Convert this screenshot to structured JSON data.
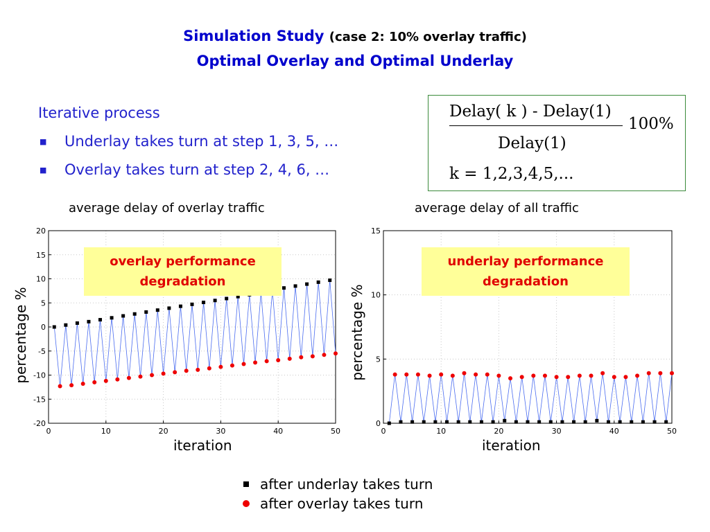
{
  "header": {
    "title_main": "Simulation Study",
    "title_sub": "(case 2: 10% overlay traffic)",
    "title_line2": "Optimal Overlay and Optimal Underlay"
  },
  "bullets": {
    "heading": "Iterative process",
    "items": [
      "Underlay takes turn at step 1, 3, 5, …",
      "Overlay takes turn at step 2, 4, 6, …"
    ],
    "marker": "■"
  },
  "formula": {
    "numerator": "Delay( k ) - Delay(1)",
    "denominator": "Delay(1)",
    "factor": "100%",
    "k_line": "k = 1,2,3,4,5,..."
  },
  "legend": {
    "underlay_label": "after underlay takes turn",
    "overlay_label": "after overlay takes turn",
    "underlay_color": "#000000",
    "overlay_color": "#ee0000",
    "line_color": "#4a6cf0"
  },
  "chart_data": [
    {
      "type": "line",
      "title": "average delay of overlay traffic",
      "xlabel": "iteration",
      "ylabel": "percentage %",
      "xlim": [
        0,
        50
      ],
      "ylim": [
        -20,
        20
      ],
      "xticks": [
        "0",
        "10",
        "20",
        "30",
        "40",
        "50"
      ],
      "yticks": [
        "20",
        "15",
        "10",
        "5",
        "0",
        "-5",
        "-10",
        "-15",
        "-20"
      ],
      "grid": true,
      "annotation": [
        "overlay performance",
        "degradation"
      ],
      "series": [
        {
          "name": "after underlay takes turn",
          "x": [
            1,
            3,
            5,
            7,
            9,
            11,
            13,
            15,
            17,
            19,
            21,
            23,
            25,
            27,
            29,
            31,
            33,
            35,
            37,
            39,
            41,
            43,
            45,
            47,
            49
          ],
          "values": [
            0.0,
            0.4,
            0.8,
            1.1,
            1.5,
            1.9,
            2.3,
            2.7,
            3.1,
            3.5,
            3.9,
            4.3,
            4.7,
            5.1,
            5.5,
            5.9,
            6.3,
            6.7,
            7.1,
            7.5,
            8.1,
            8.5,
            8.9,
            9.3,
            9.7
          ]
        },
        {
          "name": "after overlay takes turn",
          "x": [
            2,
            4,
            6,
            8,
            10,
            12,
            14,
            16,
            18,
            20,
            22,
            24,
            26,
            28,
            30,
            32,
            34,
            36,
            38,
            40,
            42,
            44,
            46,
            48,
            50
          ],
          "values": [
            -12.3,
            -12.1,
            -11.8,
            -11.5,
            -11.2,
            -10.9,
            -10.6,
            -10.3,
            -10.0,
            -9.7,
            -9.4,
            -9.1,
            -8.9,
            -8.6,
            -8.3,
            -8.0,
            -7.7,
            -7.4,
            -7.1,
            -6.9,
            -6.6,
            -6.3,
            -6.1,
            -5.8,
            -5.5
          ]
        }
      ]
    },
    {
      "type": "line",
      "title": "average delay of all traffic",
      "xlabel": "iteration",
      "ylabel": "percentage %",
      "xlim": [
        0,
        50
      ],
      "ylim": [
        0,
        15
      ],
      "xticks": [
        "0",
        "10",
        "20",
        "30",
        "40",
        "50"
      ],
      "yticks": [
        "15",
        "10",
        "5",
        "0"
      ],
      "grid": true,
      "annotation": [
        "underlay performance",
        "degradation"
      ],
      "series": [
        {
          "name": "after underlay takes turn",
          "x": [
            1,
            3,
            5,
            7,
            9,
            11,
            13,
            15,
            17,
            19,
            21,
            23,
            25,
            27,
            29,
            31,
            33,
            35,
            37,
            39,
            41,
            43,
            45,
            47,
            49
          ],
          "values": [
            0.0,
            0.1,
            0.1,
            0.1,
            0.1,
            0.1,
            0.1,
            0.1,
            0.1,
            0.1,
            0.2,
            0.1,
            0.1,
            0.1,
            0.1,
            0.1,
            0.1,
            0.1,
            0.2,
            0.1,
            0.1,
            0.1,
            0.1,
            0.1,
            0.1
          ]
        },
        {
          "name": "after overlay takes turn",
          "x": [
            2,
            4,
            6,
            8,
            10,
            12,
            14,
            16,
            18,
            20,
            22,
            24,
            26,
            28,
            30,
            32,
            34,
            36,
            38,
            40,
            42,
            44,
            46,
            48,
            50
          ],
          "values": [
            3.8,
            3.8,
            3.8,
            3.7,
            3.8,
            3.7,
            3.9,
            3.8,
            3.8,
            3.7,
            3.5,
            3.6,
            3.7,
            3.7,
            3.6,
            3.6,
            3.7,
            3.7,
            3.9,
            3.6,
            3.6,
            3.7,
            3.9,
            3.9,
            3.9
          ]
        }
      ]
    }
  ]
}
